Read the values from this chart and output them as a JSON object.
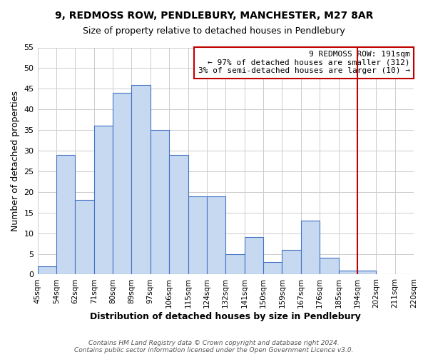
{
  "title1": "9, REDMOSS ROW, PENDLEBURY, MANCHESTER, M27 8AR",
  "title2": "Size of property relative to detached houses in Pendlebury",
  "xlabel": "Distribution of detached houses by size in Pendlebury",
  "ylabel": "Number of detached properties",
  "bin_labels": [
    "45sqm",
    "54sqm",
    "62sqm",
    "71sqm",
    "80sqm",
    "89sqm",
    "97sqm",
    "106sqm",
    "115sqm",
    "124sqm",
    "132sqm",
    "141sqm",
    "150sqm",
    "159sqm",
    "167sqm",
    "176sqm",
    "185sqm",
    "194sqm",
    "202sqm",
    "211sqm",
    "220sqm"
  ],
  "bar_heights": [
    2,
    29,
    18,
    36,
    44,
    46,
    35,
    29,
    19,
    19,
    5,
    9,
    3,
    6,
    13,
    4,
    1,
    1,
    0,
    0
  ],
  "bar_color": "#c6d9f0",
  "bar_edge_color": "#4472c4",
  "vline_x": 17.0,
  "vline_color": "#c00000",
  "annotation_text": "9 REDMOSS ROW: 191sqm\n← 97% of detached houses are smaller (312)\n3% of semi-detached houses are larger (10) →",
  "annotation_box_color": "#c00000",
  "ylim": [
    0,
    55
  ],
  "yticks": [
    0,
    5,
    10,
    15,
    20,
    25,
    30,
    35,
    40,
    45,
    50,
    55
  ],
  "footer_line1": "Contains HM Land Registry data © Crown copyright and database right 2024.",
  "footer_line2": "Contains public sector information licensed under the Open Government Licence v3.0.",
  "bg_color": "#ffffff",
  "grid_color": "#cccccc"
}
